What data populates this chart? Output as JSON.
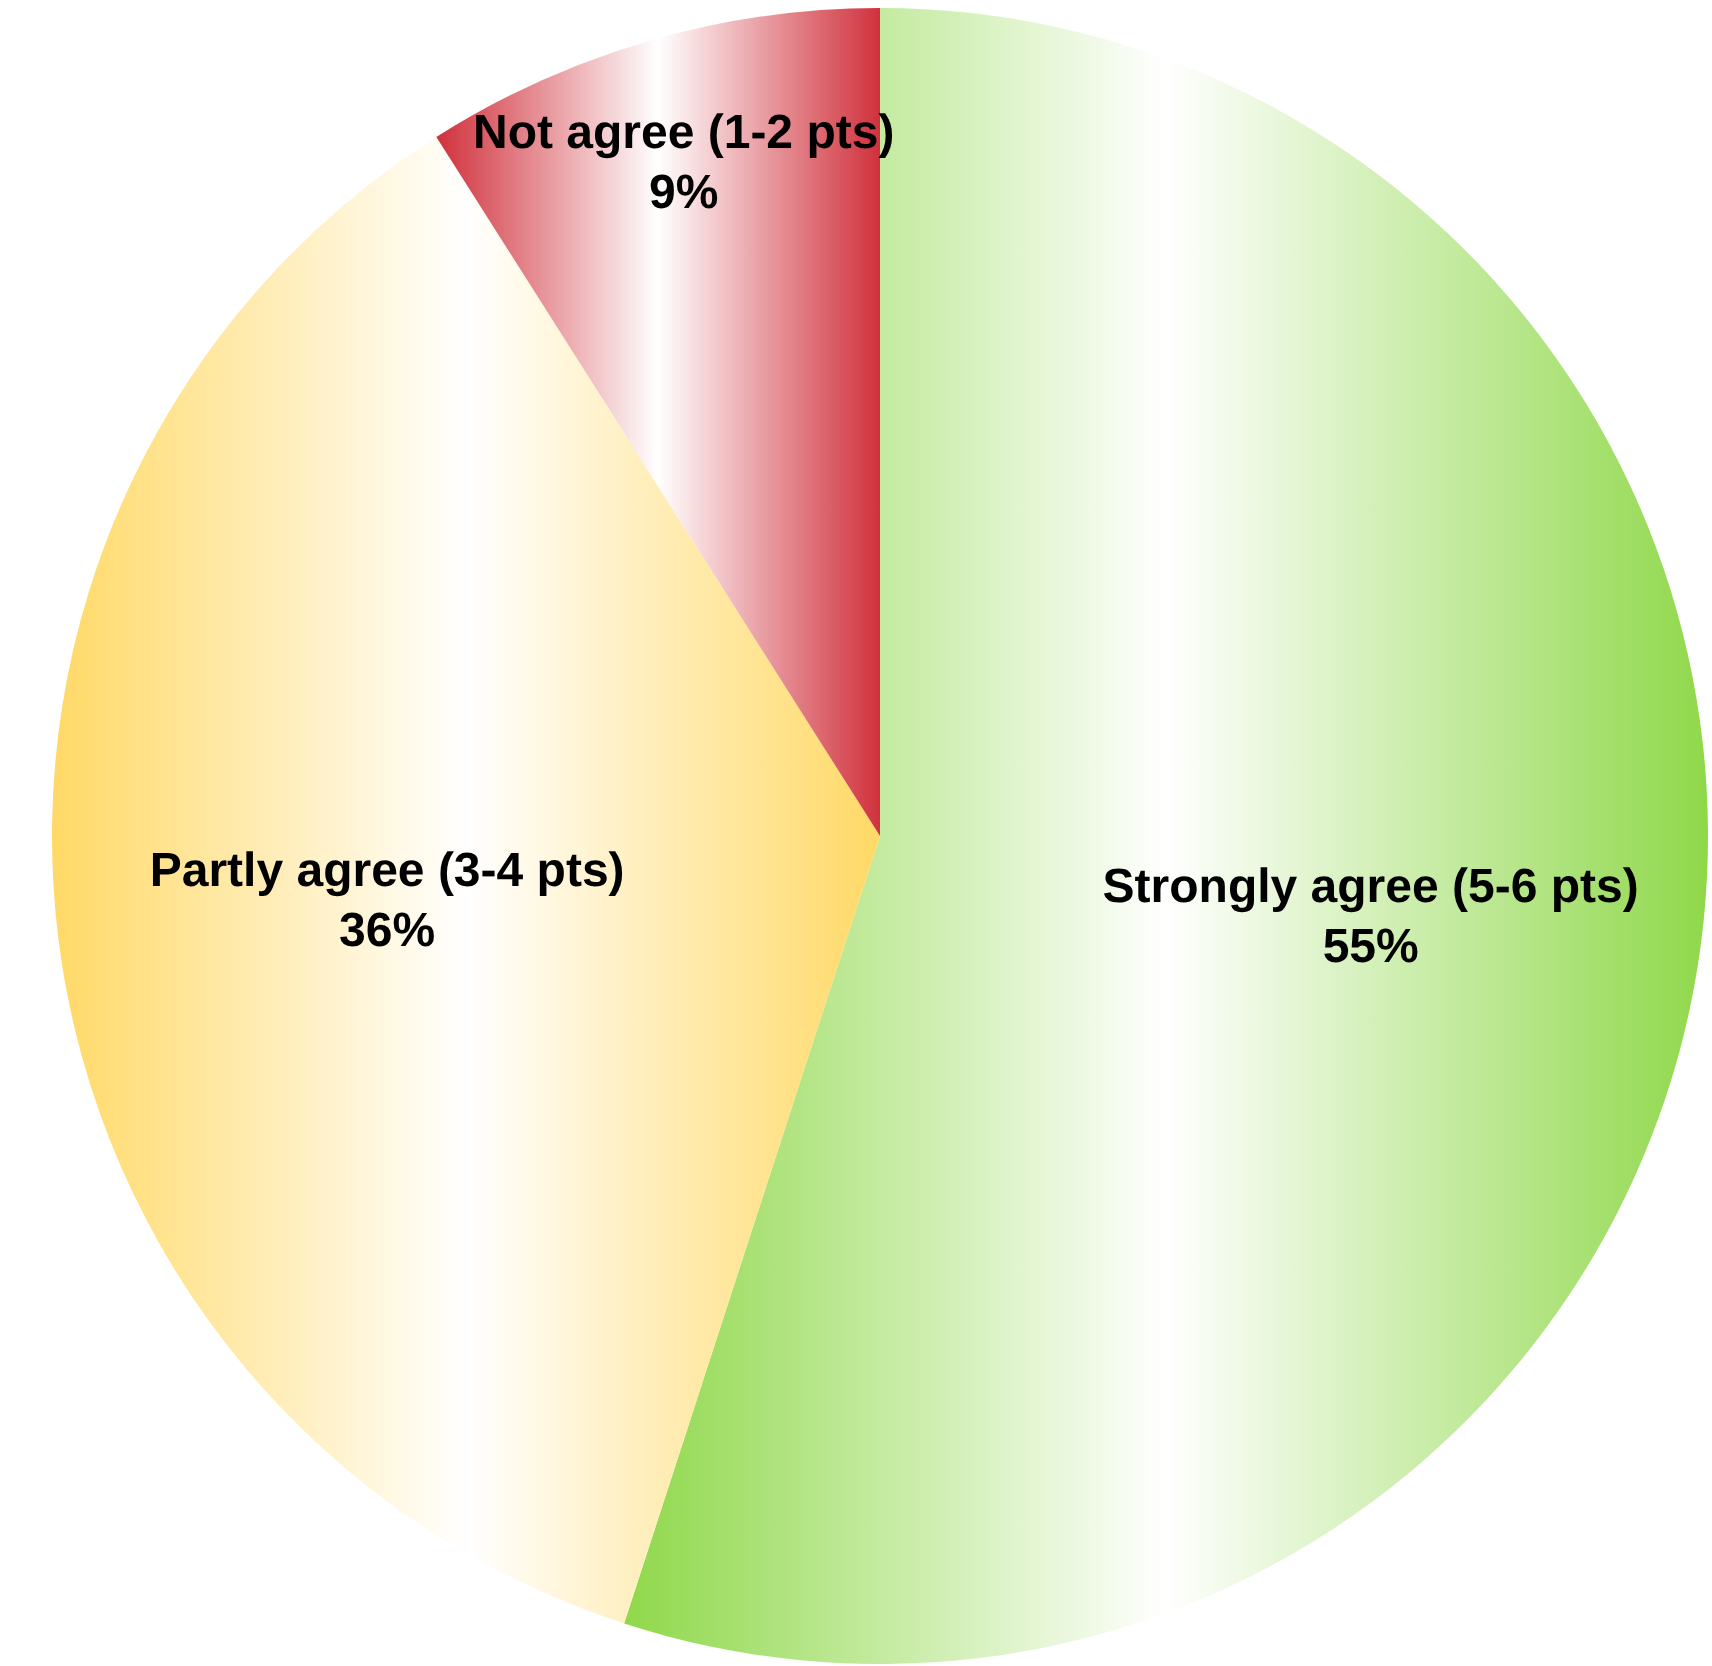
{
  "chart_data": {
    "type": "pie",
    "categories": [
      "Strongly agree (5-6 pts)",
      "Partly agree (3-4 pts)",
      "Not agree (1-2 pts)"
    ],
    "values": [
      55,
      36,
      9
    ],
    "value_labels": [
      "55%",
      "36%",
      "9%"
    ],
    "colors": [
      "#8fd84a",
      "#ffd966",
      "#d0313c"
    ]
  }
}
